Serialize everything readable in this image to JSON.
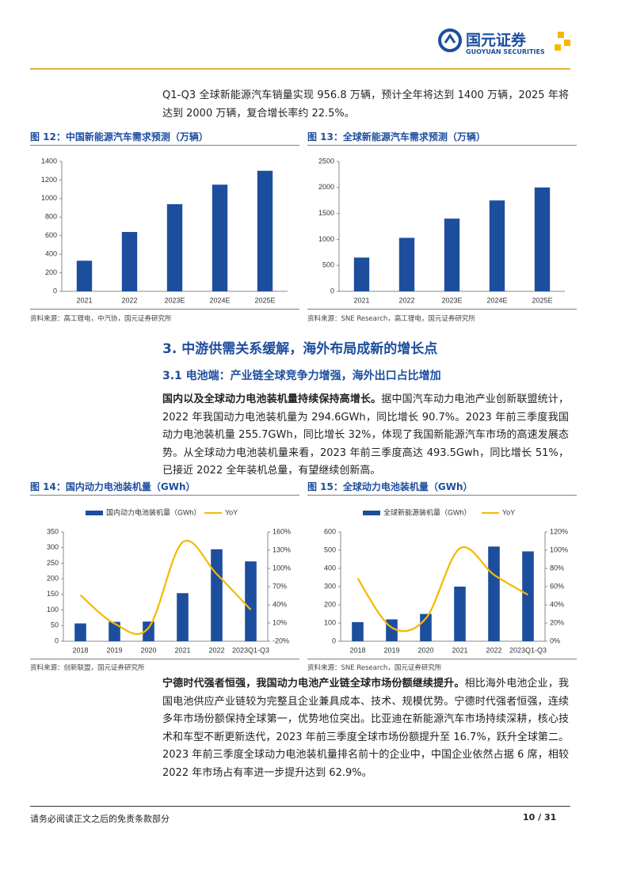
{
  "header": {
    "company": "国元证券",
    "company_en": "GUOYUAN SECURITIES"
  },
  "paragraphs": [
    {
      "text": "Q1-Q3 全球新能源汽车销量实现 956.8 万辆，预计全年将达到 1400 万辆，2025 年将达到 2000 万辆，复合增长率约 22.5%。"
    },
    {
      "bold": "国内以及全球动力电池装机量持续保持高增长。",
      "text": "据中国汽车动力电池产业创新联盟统计，2022 年我国动力电池装机量为 294.6GWh，同比增长 90.7%。2023 年前三季度我国动力电池装机量 255.7GWh，同比增长 32%，体现了我国新能源汽车市场的高速发展态势。从全球动力电池装机量来看，2023 年前三季度高达 493.5Gwh，同比增长 51%，已接近 2022 全年装机总量，有望继续创新高。"
    },
    {
      "bold": "宁德时代强者恒强，我国动力电池产业链全球市场份额继续提升。",
      "text": "相比海外电池企业，我国电池供应产业链较为完整且企业兼具成本、技术、规模优势。宁德时代强者恒强，连续多年市场份额保持全球第一，优势地位突出。比亚迪在新能源汽车市场持续深耕，核心技术和车型不断更新迭代，2023 年前三季度全球市场份额提升至 16.7%，跃升全球第二。2023 年前三季度全球动力电池装机量排名前十的企业中，中国企业依然占据 6 席，相较 2022 年市场占有率进一步提升达到 62.9%。"
    }
  ],
  "headings": [
    "3. 中游供需关系缓解，海外布局成新的增长点",
    "3.1 电池端：产业链全球竞争力增强，海外出口占比增加"
  ],
  "chart_data": [
    {
      "type": "bar",
      "title": "图 12：中国新能源汽车需求预测（万辆）",
      "source": "资料来源：高工锂电，中汽协，国元证券研究所",
      "categories": [
        "2021",
        "2022",
        "2023E",
        "2024E",
        "2025E"
      ],
      "values": [
        330,
        640,
        940,
        1150,
        1300
      ],
      "color": "#1d4e9e",
      "ylim": [
        0,
        1400
      ],
      "yticks": [
        0,
        200,
        400,
        600,
        800,
        1000,
        1200,
        1400
      ]
    },
    {
      "type": "bar",
      "title": "图 13：全球新能源汽车需求预测（万辆）",
      "source": "资料来源：SNE Research，高工锂电，国元证券研究所",
      "categories": [
        "2021",
        "2022",
        "2023E",
        "2024E",
        "2025E"
      ],
      "values": [
        650,
        1030,
        1400,
        1750,
        2000
      ],
      "color": "#1d4e9e",
      "ylim": [
        0,
        2500
      ],
      "yticks": [
        0,
        500,
        1000,
        1500,
        2000,
        2500
      ]
    },
    {
      "type": "combo",
      "title": "图 14：国内动力电池装机量（GWh）",
      "source": "资料来源：创新联盟，国元证券研究所",
      "categories": [
        "2018",
        "2019",
        "2020",
        "2021",
        "2022",
        "2023Q1-Q3"
      ],
      "series": [
        {
          "name": "国内动力电池装机量（GWh）",
          "color": "#1d4e9e",
          "values": [
            57,
            62,
            63,
            154,
            294.6,
            255.7
          ]
        },
        {
          "name": "YoY",
          "color": "#f5b800",
          "axis": "y2",
          "values": [
            56,
            9,
            2,
            143,
            90.7,
            32
          ]
        }
      ],
      "ylim": [
        0,
        350
      ],
      "yticks": [
        0,
        50,
        100,
        150,
        200,
        250,
        300,
        350
      ],
      "y2lim": [
        -20,
        160
      ],
      "y2ticks": [
        {
          "value": -20,
          "label": "-20%"
        },
        {
          "value": 10,
          "label": "10%"
        },
        {
          "value": 40,
          "label": "40%"
        },
        {
          "value": 70,
          "label": "70%"
        },
        {
          "value": 100,
          "label": "100%"
        },
        {
          "value": 130,
          "label": "130%"
        },
        {
          "value": 160,
          "label": "160%"
        }
      ]
    },
    {
      "type": "combo",
      "title": "图 15：全球动力电池装机量（GWh）",
      "source": "资料来源：SNE Research，国元证券研究所",
      "categories": [
        "2018",
        "2019",
        "2020",
        "2021",
        "2022",
        "2023Q1-Q3"
      ],
      "series": [
        {
          "name": "全球新能源装机量（GWh）",
          "color": "#1d4e9e",
          "values": [
            105,
            120,
            150,
            300,
            520,
            493.5
          ]
        },
        {
          "name": "YoY",
          "color": "#f5b800",
          "axis": "y2",
          "values": [
            69,
            15,
            25,
            102,
            73,
            51
          ]
        }
      ],
      "ylim": [
        0,
        600
      ],
      "yticks": [
        0,
        100,
        200,
        300,
        400,
        500,
        600
      ],
      "y2lim": [
        0,
        120
      ],
      "y2ticks": [
        {
          "value": 0,
          "label": "0%"
        },
        {
          "value": 20,
          "label": "20%"
        },
        {
          "value": 40,
          "label": "40%"
        },
        {
          "value": 60,
          "label": "60%"
        },
        {
          "value": 80,
          "label": "80%"
        },
        {
          "value": 100,
          "label": "100%"
        },
        {
          "value": 120,
          "label": "120%"
        }
      ]
    }
  ],
  "footer": {
    "disclaimer": "请务必阅读正文之后的免责条款部分",
    "page": "10 / 31"
  }
}
